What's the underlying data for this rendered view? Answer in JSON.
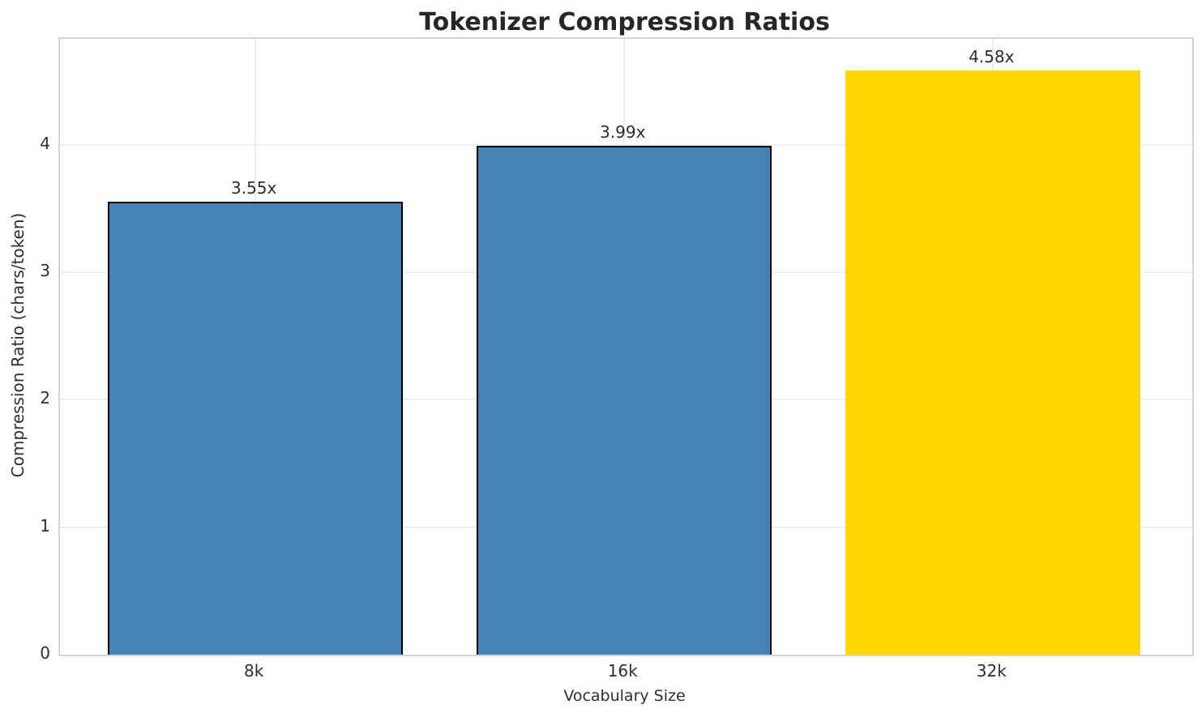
{
  "chart_data": {
    "type": "bar",
    "title": "Tokenizer Compression Ratios",
    "xlabel": "Vocabulary Size",
    "ylabel": "Compression Ratio (chars/token)",
    "categories": [
      "8k",
      "16k",
      "32k"
    ],
    "values": [
      3.55,
      3.99,
      4.58
    ],
    "bar_labels": [
      "3.55x",
      "3.99x",
      "4.58x"
    ],
    "yticks": [
      "0",
      "1",
      "2",
      "3",
      "4"
    ],
    "ylim": [
      0,
      4.83
    ],
    "xlim": [
      -0.53,
      2.54
    ],
    "bar_width_units": 0.8,
    "grid": "both",
    "legend": "none",
    "colors": {
      "bars": [
        "#4682B4",
        "#4682B4",
        "#FFD700"
      ],
      "bar_edges": [
        "#000000",
        "#000000",
        "transparent"
      ],
      "grid": "#EDEDED",
      "spine": "#D5D5D5",
      "title_text": "#262626",
      "tick_text": "#2E2E2E",
      "background": "#FFFFFF"
    }
  }
}
